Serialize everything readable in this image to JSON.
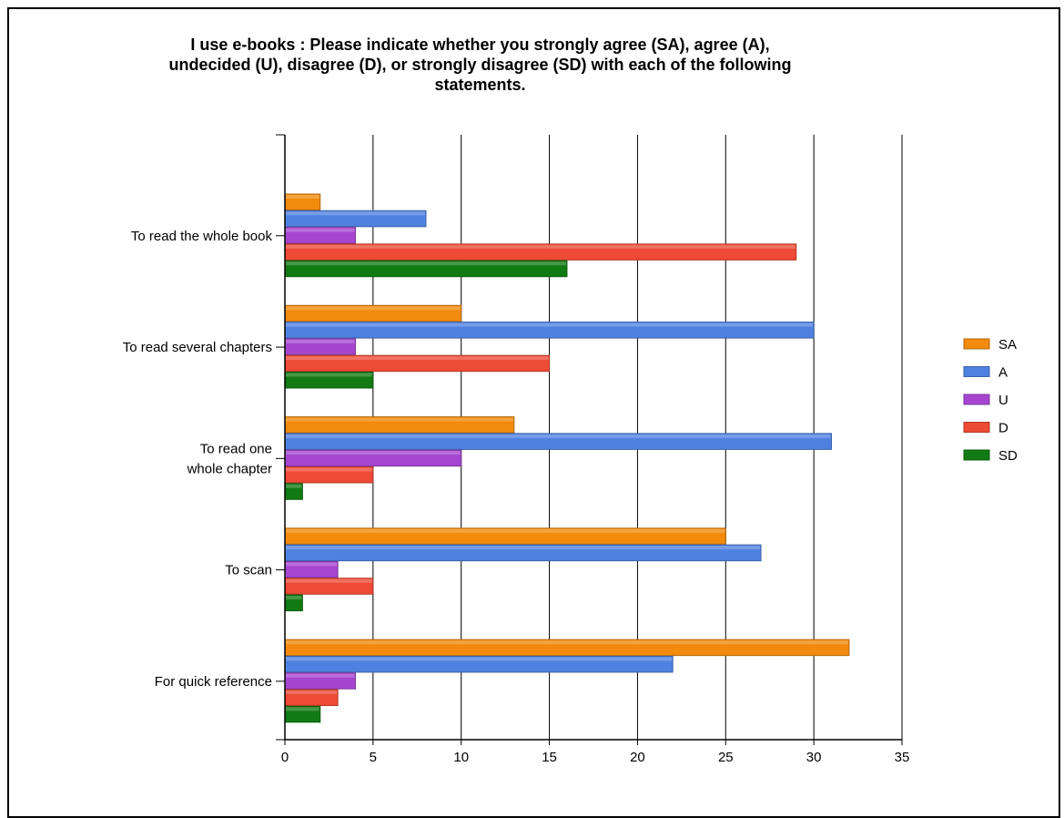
{
  "chart_data": {
    "type": "bar",
    "orientation": "horizontal",
    "title_lines": [
      "I use e-books :   Please indicate whether you strongly agree (SA), agree (A),",
      "undecided (U), disagree (D), or strongly disagree (SD) with each of the following",
      "statements."
    ],
    "categories": [
      [
        "To read the whole book"
      ],
      [
        "To read several chapters"
      ],
      [
        "To read one",
        "whole chapter"
      ],
      [
        "To scan"
      ],
      [
        "For quick reference"
      ]
    ],
    "series": [
      {
        "name": "SA",
        "color": "#F28A0C",
        "values": [
          2,
          10,
          13,
          25,
          32
        ]
      },
      {
        "name": "A",
        "color": "#4F81E0",
        "values": [
          8,
          30,
          31,
          27,
          22
        ]
      },
      {
        "name": "U",
        "color": "#A646D0",
        "values": [
          4,
          4,
          10,
          3,
          4
        ]
      },
      {
        "name": "D",
        "color": "#EE4A35",
        "values": [
          29,
          15,
          5,
          5,
          3
        ]
      },
      {
        "name": "SD",
        "color": "#127A12",
        "values": [
          16,
          5,
          1,
          1,
          2
        ]
      }
    ],
    "x_ticks": [
      "0",
      "5",
      "10",
      "15",
      "20",
      "25",
      "30",
      "35"
    ],
    "xlim": [
      0,
      35
    ],
    "grid": true,
    "legend_position": "right"
  }
}
